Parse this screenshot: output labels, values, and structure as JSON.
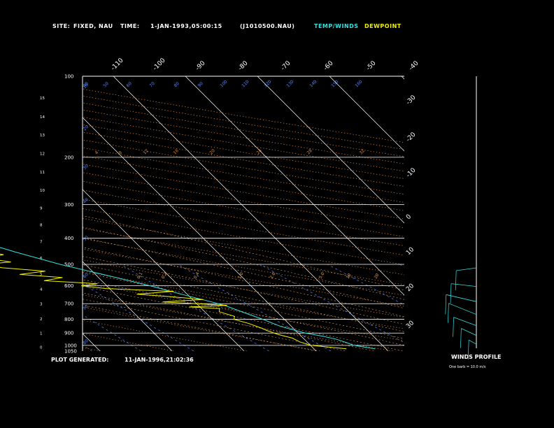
{
  "header": {
    "site_label": "SITE:",
    "site_value": "FIXED, NAU",
    "time_label": "TIME:",
    "time_value": "1-JAN-1993,05:00:15",
    "file_id": "(J1010500.NAU)",
    "legend_temp": "TEMP/WINDS",
    "legend_dew": "DEWPOINT"
  },
  "footer": {
    "generated_label": "PLOT GENERATED:",
    "generated_value": "11-JAN-1996,21:02:36",
    "winds_title": "WINDS PROFILE",
    "winds_note": "One barb = 10.0 m/s"
  },
  "colors": {
    "temp": "#33e0e0",
    "dew": "#f0f000",
    "grid": "#ffffff",
    "dry_adiabat": "#e08a3a",
    "moist_adiabat": "#e0a060",
    "mixing_ratio": "#5a8aff",
    "axis_text": "#5a8aff"
  },
  "chart_data": {
    "type": "line",
    "title": "",
    "pressure_levels": [
      {
        "p": 100,
        "label": "100"
      },
      {
        "p": 200,
        "label": "200"
      },
      {
        "p": 300,
        "label": "300"
      },
      {
        "p": 400,
        "label": "400"
      },
      {
        "p": 500,
        "label": "500"
      },
      {
        "p": 600,
        "label": "600"
      },
      {
        "p": 700,
        "label": "700"
      },
      {
        "p": 800,
        "label": "800"
      },
      {
        "p": 900,
        "label": "900"
      },
      {
        "p": 1000,
        "label": "1000"
      },
      {
        "p": 1050,
        "label": "1050"
      }
    ],
    "height_ticks": [
      "0",
      "1",
      "2",
      "3",
      "4",
      "5",
      "6",
      "7",
      "8",
      "9",
      "10",
      "11",
      "12",
      "13",
      "14",
      "15"
    ],
    "isotherm_labels_top": [
      "-110",
      "-100",
      "-90",
      "-80",
      "-70",
      "-60",
      "-50",
      "-40"
    ],
    "isotherm_labels_right": [
      "-30",
      "-20",
      "-10",
      "0",
      "10",
      "20",
      "30"
    ],
    "mixing_ratio_labels": [
      "0.1",
      "0.2",
      "0.4",
      "1.0",
      "2.0",
      "5.0",
      "10",
      "20"
    ],
    "dry_adiabat_labels": [
      "4",
      "8",
      "12",
      "16",
      "20",
      "24",
      "28",
      "32"
    ],
    "top_adiabat_labels": [
      "40",
      "50",
      "60",
      "70",
      "80",
      "90",
      "100",
      "110",
      "120",
      "130",
      "140",
      "150",
      "160"
    ],
    "left_adiabat_labels": [
      "10",
      "20",
      "30",
      "40",
      "50",
      "60",
      "70",
      "80",
      "90",
      "100"
    ],
    "series": [
      {
        "name": "TEMP/WINDS",
        "points": [
          [
            1030,
            -1.5
          ],
          [
            1000,
            -4.0
          ],
          [
            980,
            -4.5
          ],
          [
            950,
            -5.5
          ],
          [
            925,
            -7.0
          ],
          [
            900,
            -9.0
          ],
          [
            870,
            -10.5
          ],
          [
            850,
            -11.5
          ],
          [
            800,
            -13.0
          ],
          [
            760,
            -14.5
          ],
          [
            720,
            -16.0
          ],
          [
            700,
            -17.0
          ],
          [
            650,
            -20.5
          ],
          [
            600,
            -24.0
          ],
          [
            550,
            -28.5
          ],
          [
            500,
            -33.5
          ],
          [
            450,
            -38.0
          ],
          [
            400,
            -42.5
          ],
          [
            350,
            -48.0
          ],
          [
            300,
            -54.0
          ],
          [
            280,
            -56.5
          ],
          [
            250,
            -58.0
          ],
          [
            200,
            -61.0
          ],
          [
            175,
            -62.5
          ],
          [
            150,
            -63.0
          ],
          [
            125,
            -65.5
          ],
          [
            110,
            -67.0
          ],
          [
            100,
            -66.0
          ]
        ]
      },
      {
        "name": "DEWPOINT",
        "points": [
          [
            1030,
            -5.5
          ],
          [
            1000,
            -10.0
          ],
          [
            970,
            -11.0
          ],
          [
            940,
            -11.5
          ],
          [
            910,
            -13.0
          ],
          [
            880,
            -14.0
          ],
          [
            860,
            -14.5
          ],
          [
            830,
            -15.5
          ],
          [
            800,
            -17.0
          ],
          [
            780,
            -16.5
          ],
          [
            750,
            -18.0
          ],
          [
            730,
            -17.5
          ],
          [
            720,
            -21.5
          ],
          [
            710,
            -16.0
          ],
          [
            700,
            -20.0
          ],
          [
            690,
            -24.5
          ],
          [
            675,
            -18.5
          ],
          [
            660,
            -22.5
          ],
          [
            645,
            -27.0
          ],
          [
            630,
            -21.5
          ],
          [
            615,
            -30.5
          ],
          [
            600,
            -33.5
          ],
          [
            590,
            -31.0
          ],
          [
            575,
            -38.0
          ],
          [
            560,
            -35.0
          ],
          [
            545,
            -40.5
          ],
          [
            530,
            -36.5
          ],
          [
            515,
            -42.0
          ],
          [
            500,
            -44.0
          ],
          [
            490,
            -40.0
          ],
          [
            475,
            -43.0
          ],
          [
            460,
            -40.0
          ],
          [
            445,
            -43.5
          ],
          [
            425,
            -44.0
          ],
          [
            400,
            -46.0
          ],
          [
            370,
            -48.5
          ],
          [
            340,
            -52.0
          ],
          [
            320,
            -54.0
          ],
          [
            300,
            -57.0
          ],
          [
            270,
            -65.0
          ],
          [
            240,
            -70.0
          ],
          [
            220,
            -73.0
          ],
          [
            200,
            -76.0
          ],
          [
            175,
            -80.0
          ],
          [
            150,
            -84.0
          ],
          [
            125,
            -89.0
          ],
          [
            110,
            -89.5
          ],
          [
            100,
            -86.0
          ]
        ]
      }
    ],
    "wind_profile": [
      {
        "p": 1000,
        "u": 6,
        "v": 3
      },
      {
        "p": 900,
        "u": 12,
        "v": 5
      },
      {
        "p": 800,
        "u": 18,
        "v": 6
      },
      {
        "p": 700,
        "u": 22,
        "v": 8
      },
      {
        "p": 600,
        "u": 24,
        "v": 5
      },
      {
        "p": 500,
        "u": 20,
        "v": 2
      },
      {
        "p": 400,
        "u": 16,
        "v": -2
      }
    ]
  }
}
